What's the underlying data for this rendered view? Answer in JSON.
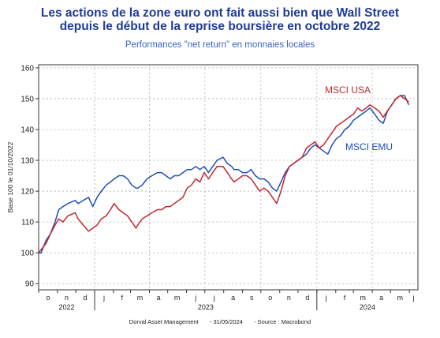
{
  "header": {
    "title_line1": "Les actions de la zone euro ont fait aussi bien que Wall Street",
    "title_line2": "depuis le début de la reprise boursière en octobre 2022",
    "subtitle": "Performances \"net return\" en monnaies locales"
  },
  "footer": {
    "author": "Dorval Asset Management",
    "date": "- 31/05/2024",
    "source": "- Source : Macrobond"
  },
  "colors": {
    "usa": "#c1272d",
    "emu": "#1f4fb5",
    "title": "#1f3b96",
    "grid": "#b0b0b0"
  },
  "chart_data": {
    "type": "line",
    "ylabel": "Base 100 le 01/10/2022",
    "ylim": [
      88,
      161
    ],
    "y_ticks": [
      90,
      100,
      110,
      120,
      130,
      140,
      150,
      160
    ],
    "x_range": [
      "2022-10-01",
      "2024-06-15"
    ],
    "x_month_labels": [
      "o",
      "n",
      "d",
      "j",
      "f",
      "m",
      "a",
      "m",
      "j",
      "j",
      "a",
      "s",
      "o",
      "n",
      "d",
      "j",
      "f",
      "m",
      "a",
      "m",
      "j"
    ],
    "x_year_labels": [
      "2022",
      "2023",
      "2024"
    ],
    "grid": true,
    "series": [
      {
        "name": "MSCI USA",
        "x": [
          "2022-10-01",
          "2022-10-05",
          "2022-10-13",
          "2022-10-20",
          "2022-10-28",
          "2022-11-03",
          "2022-11-10",
          "2022-11-18",
          "2022-11-30",
          "2022-12-05",
          "2022-12-13",
          "2022-12-22",
          "2022-12-29",
          "2023-01-05",
          "2023-01-12",
          "2023-01-20",
          "2023-01-27",
          "2023-02-02",
          "2023-02-10",
          "2023-02-17",
          "2023-02-24",
          "2023-03-03",
          "2023-03-10",
          "2023-03-13",
          "2023-03-20",
          "2023-03-28",
          "2023-04-05",
          "2023-04-14",
          "2023-04-21",
          "2023-04-28",
          "2023-05-05",
          "2023-05-12",
          "2023-05-19",
          "2023-05-26",
          "2023-06-02",
          "2023-06-09",
          "2023-06-16",
          "2023-06-23",
          "2023-06-30",
          "2023-07-07",
          "2023-07-14",
          "2023-07-21",
          "2023-07-31",
          "2023-08-07",
          "2023-08-14",
          "2023-08-18",
          "2023-08-25",
          "2023-09-01",
          "2023-09-08",
          "2023-09-15",
          "2023-09-22",
          "2023-09-29",
          "2023-10-06",
          "2023-10-13",
          "2023-10-20",
          "2023-10-27",
          "2023-11-03",
          "2023-11-10",
          "2023-11-17",
          "2023-11-24",
          "2023-12-01",
          "2023-12-08",
          "2023-12-15",
          "2023-12-22",
          "2023-12-29",
          "2024-01-05",
          "2024-01-12",
          "2024-01-19",
          "2024-01-26",
          "2024-02-02",
          "2024-02-09",
          "2024-02-16",
          "2024-02-23",
          "2024-03-01",
          "2024-03-08",
          "2024-03-15",
          "2024-03-22",
          "2024-03-28",
          "2024-04-05",
          "2024-04-12",
          "2024-04-19",
          "2024-04-26",
          "2024-05-03",
          "2024-05-10",
          "2024-05-17",
          "2024-05-24",
          "2024-05-31"
        ],
        "values": [
          100,
          101,
          103,
          106,
          109,
          111,
          110,
          112,
          113,
          111,
          109,
          107,
          108,
          109,
          111,
          112,
          114,
          116,
          114,
          113,
          112,
          110,
          108,
          109,
          111,
          112,
          113,
          114,
          114,
          115,
          115,
          116,
          117,
          118,
          121,
          122,
          124,
          123,
          126,
          124,
          126,
          128,
          128,
          126,
          124,
          123,
          124,
          125,
          125,
          124,
          122,
          120,
          121,
          120,
          118,
          116,
          120,
          125,
          128,
          129,
          130,
          131,
          134,
          135,
          136,
          134,
          135,
          137,
          139,
          141,
          142,
          143,
          144,
          145,
          147,
          146,
          147,
          148,
          147,
          146,
          144,
          146,
          148,
          150,
          151,
          150,
          149
        ]
      },
      {
        "name": "MSCI EMU",
        "x": [
          "2022-10-01",
          "2022-10-05",
          "2022-10-13",
          "2022-10-20",
          "2022-10-28",
          "2022-11-03",
          "2022-11-10",
          "2022-11-18",
          "2022-11-30",
          "2022-12-05",
          "2022-12-13",
          "2022-12-22",
          "2022-12-29",
          "2023-01-05",
          "2023-01-12",
          "2023-01-20",
          "2023-01-27",
          "2023-02-02",
          "2023-02-10",
          "2023-02-17",
          "2023-02-24",
          "2023-03-03",
          "2023-03-10",
          "2023-03-13",
          "2023-03-20",
          "2023-03-28",
          "2023-04-05",
          "2023-04-14",
          "2023-04-21",
          "2023-04-28",
          "2023-05-05",
          "2023-05-12",
          "2023-05-19",
          "2023-05-26",
          "2023-06-02",
          "2023-06-09",
          "2023-06-16",
          "2023-06-23",
          "2023-06-30",
          "2023-07-07",
          "2023-07-14",
          "2023-07-21",
          "2023-07-31",
          "2023-08-07",
          "2023-08-14",
          "2023-08-18",
          "2023-08-25",
          "2023-09-01",
          "2023-09-08",
          "2023-09-15",
          "2023-09-22",
          "2023-09-29",
          "2023-10-06",
          "2023-10-13",
          "2023-10-20",
          "2023-10-27",
          "2023-11-03",
          "2023-11-10",
          "2023-11-17",
          "2023-11-24",
          "2023-12-01",
          "2023-12-08",
          "2023-12-15",
          "2023-12-22",
          "2023-12-29",
          "2024-01-05",
          "2024-01-12",
          "2024-01-19",
          "2024-01-26",
          "2024-02-02",
          "2024-02-09",
          "2024-02-16",
          "2024-02-23",
          "2024-03-01",
          "2024-03-08",
          "2024-03-15",
          "2024-03-22",
          "2024-03-28",
          "2024-04-05",
          "2024-04-12",
          "2024-04-19",
          "2024-04-26",
          "2024-05-03",
          "2024-05-10",
          "2024-05-17",
          "2024-05-24",
          "2024-05-31"
        ],
        "values": [
          100,
          100,
          104,
          106,
          110,
          114,
          115,
          116,
          117,
          116,
          117,
          118,
          115,
          118,
          120,
          122,
          123,
          124,
          125,
          125,
          124,
          122,
          121,
          121,
          122,
          124,
          125,
          126,
          126,
          125,
          124,
          125,
          125,
          126,
          127,
          127,
          128,
          127,
          128,
          126,
          128,
          130,
          131,
          129,
          128,
          127,
          127,
          126,
          126,
          127,
          125,
          124,
          124,
          123,
          121,
          120,
          123,
          126,
          128,
          129,
          130,
          131,
          132,
          134,
          135,
          134,
          133,
          132,
          135,
          137,
          138,
          140,
          141,
          143,
          144,
          145,
          146,
          147,
          145,
          143,
          142,
          146,
          148,
          150,
          151,
          151,
          148
        ]
      }
    ],
    "annotations": [
      {
        "text": "MSCI USA",
        "series": "MSCI USA"
      },
      {
        "text": "MSCI EMU",
        "series": "MSCI EMU"
      }
    ]
  }
}
